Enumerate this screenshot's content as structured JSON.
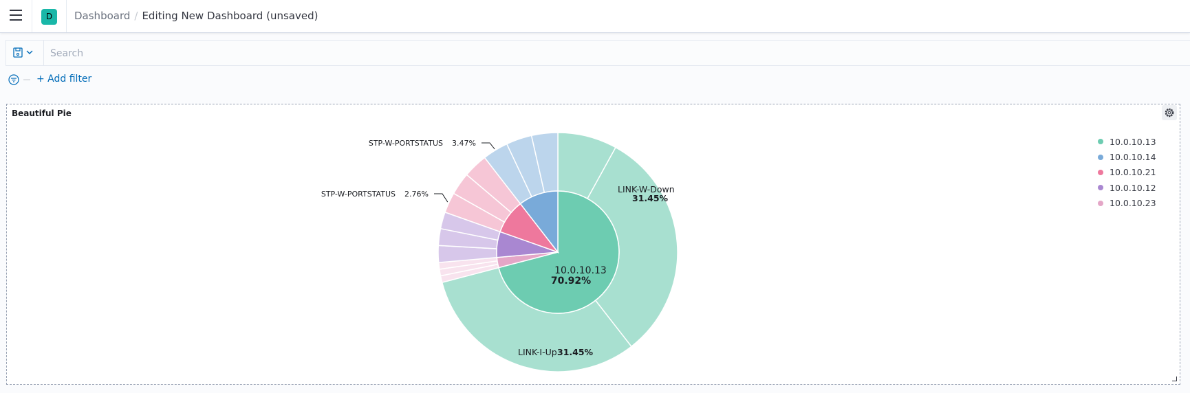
{
  "header": {
    "menu_icon": "hamburger-icon",
    "avatar_letter": "D",
    "avatar_color": "#19b7a8",
    "breadcrumbs": [
      "Dashboard",
      "Editing New Dashboard (unsaved)"
    ],
    "breadcrumb_separator": "/"
  },
  "search": {
    "saved_query_icon": "save-icon",
    "placeholder": "Search",
    "value": ""
  },
  "filters": {
    "add_filter_label": "+ Add filter"
  },
  "panel": {
    "title": "Beautiful Pie"
  },
  "chart_data": {
    "type": "pie",
    "title": "Beautiful Pie",
    "style": "donut-sunburst",
    "legend_position": "right",
    "legend": [
      {
        "label": "10.0.10.13",
        "color": "#6dccb1"
      },
      {
        "label": "10.0.10.14",
        "color": "#79aad9"
      },
      {
        "label": "10.0.10.21",
        "color": "#ee789d"
      },
      {
        "label": "10.0.10.12",
        "color": "#a987d1"
      },
      {
        "label": "10.0.10.23",
        "color": "#e4a6c7"
      }
    ],
    "inner": [
      {
        "name": "10.0.10.13",
        "value": 70.92,
        "color": "#6dccb1",
        "tint": "#a8e0d0",
        "label": "10.0.10.13",
        "pct_label": "70.92%"
      },
      {
        "name": "10.0.10.23",
        "value": 2.7,
        "color": "#e4a6c7",
        "tint": "#f8e3ee"
      },
      {
        "name": "10.0.10.12",
        "value": 6.8,
        "color": "#a987d1",
        "tint": "#d7c7ea"
      },
      {
        "name": "10.0.10.21",
        "value": 9.1,
        "color": "#ee789d",
        "tint": "#f6c6d6"
      },
      {
        "name": "10.0.10.14",
        "value": 10.48,
        "color": "#79aad9",
        "tint": "#bcd5ec"
      }
    ],
    "outer": [
      {
        "parent": "10.0.10.13",
        "value": 8.02
      },
      {
        "parent": "10.0.10.13",
        "value": 31.45,
        "label": "LINK-W-Down",
        "pct_label": "31.45%"
      },
      {
        "parent": "10.0.10.13",
        "value": 31.45,
        "label": "LINK-I-Up",
        "pct_label": "31.45%"
      },
      {
        "parent": "10.0.10.23",
        "value": 0.9
      },
      {
        "parent": "10.0.10.23",
        "value": 0.9
      },
      {
        "parent": "10.0.10.23",
        "value": 0.9
      },
      {
        "parent": "10.0.10.12",
        "value": 2.27
      },
      {
        "parent": "10.0.10.12",
        "value": 2.27
      },
      {
        "parent": "10.0.10.12",
        "value": 2.26
      },
      {
        "parent": "10.0.10.21",
        "value": 2.76,
        "label": "STP-W-PORTSTATUS",
        "pct_label": "2.76%"
      },
      {
        "parent": "10.0.10.21",
        "value": 3.04
      },
      {
        "parent": "10.0.10.21",
        "value": 3.3
      },
      {
        "parent": "10.0.10.14",
        "value": 3.47,
        "label": "STP-W-PORTSTATUS",
        "pct_label": "3.47%"
      },
      {
        "parent": "10.0.10.14",
        "value": 3.47
      },
      {
        "parent": "10.0.10.14",
        "value": 3.54
      }
    ]
  }
}
